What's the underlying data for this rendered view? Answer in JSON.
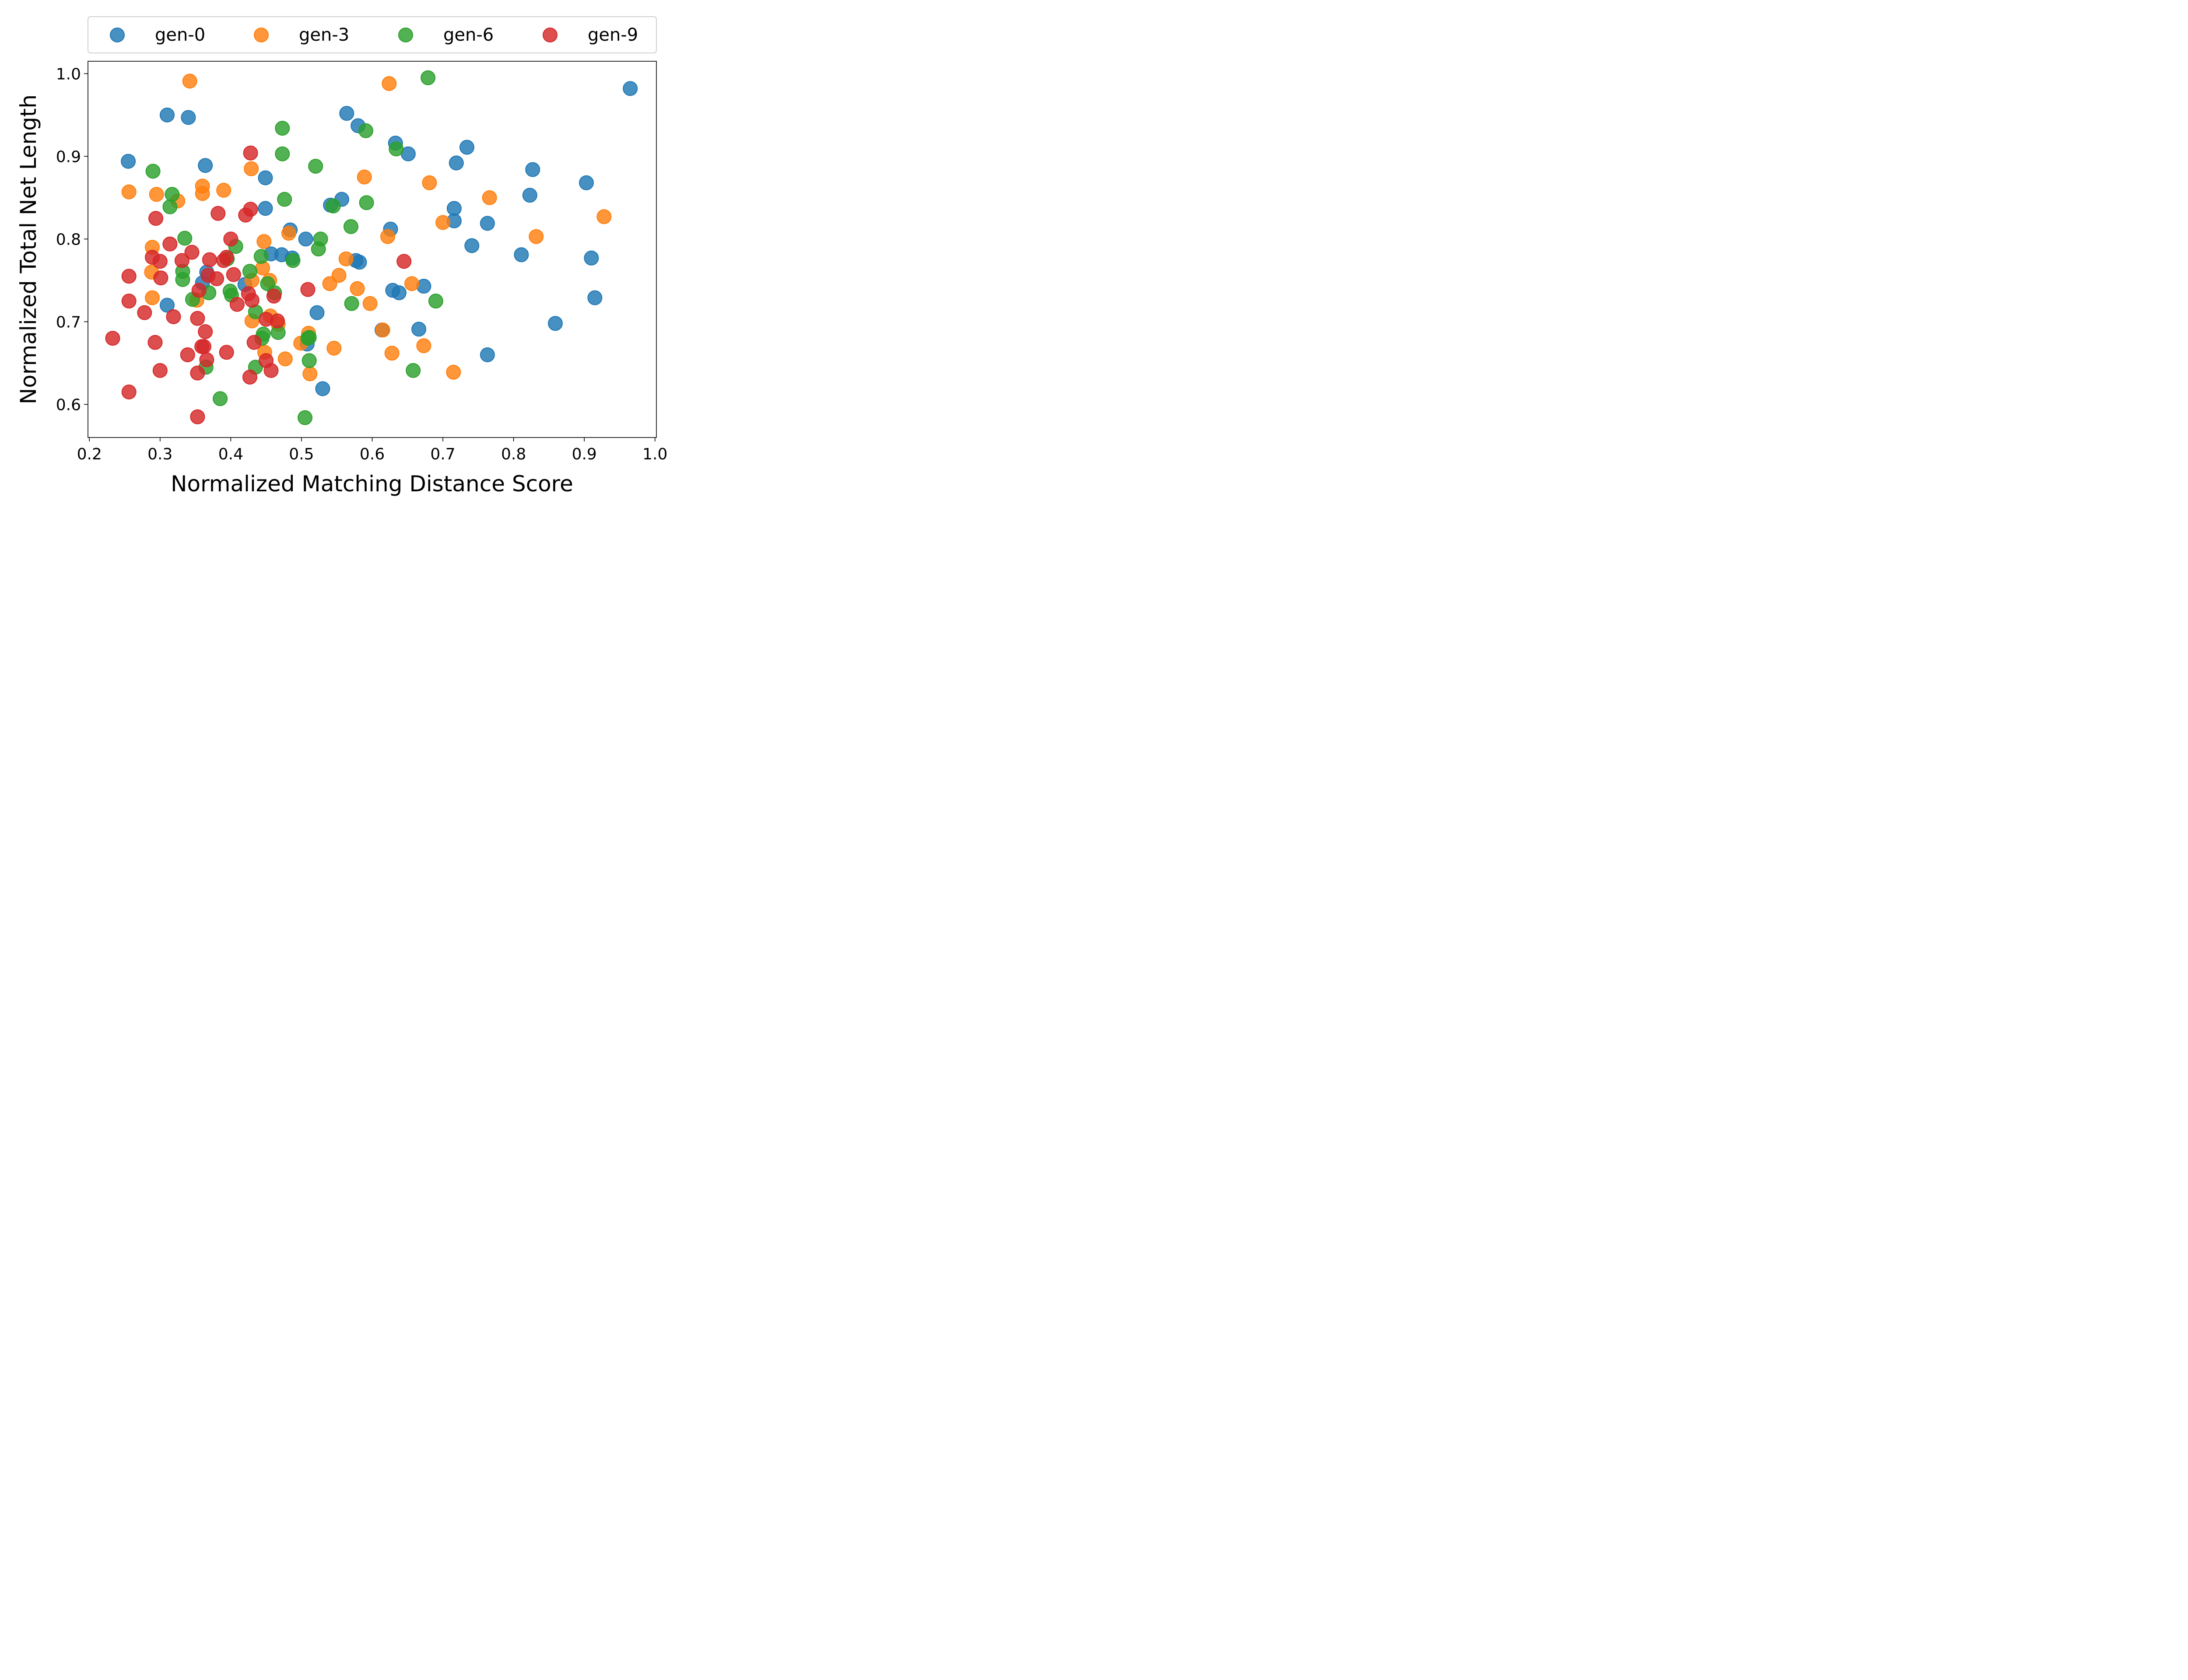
{
  "chart_data": {
    "type": "scatter",
    "xlabel": "Normalized Matching Distance Score",
    "ylabel": "Normalized Total Net Length",
    "xlim": [
      0.198,
      1.002
    ],
    "ylim": [
      0.56,
      1.015
    ],
    "xticks": [
      0.2,
      0.3,
      0.4,
      0.5,
      0.6,
      0.7,
      0.8,
      0.9,
      1.0
    ],
    "yticks": [
      0.6,
      0.7,
      0.8,
      0.9,
      1.0
    ],
    "grid": false,
    "legend_position": "above-plot",
    "series": [
      {
        "name": "gen-0",
        "color": "#1f77b4",
        "points": [
          [
            0.31,
            0.95
          ],
          [
            0.34,
            0.947
          ],
          [
            0.255,
            0.894
          ],
          [
            0.364,
            0.889
          ],
          [
            0.449,
            0.874
          ],
          [
            0.449,
            0.837
          ],
          [
            0.31,
            0.72
          ],
          [
            0.36,
            0.747
          ],
          [
            0.366,
            0.76
          ],
          [
            0.484,
            0.811
          ],
          [
            0.506,
            0.8
          ],
          [
            0.457,
            0.782
          ],
          [
            0.472,
            0.781
          ],
          [
            0.487,
            0.777
          ],
          [
            0.42,
            0.745
          ],
          [
            0.508,
            0.673
          ],
          [
            0.522,
            0.711
          ],
          [
            0.53,
            0.619
          ],
          [
            0.541,
            0.841
          ],
          [
            0.557,
            0.848
          ],
          [
            0.564,
            0.952
          ],
          [
            0.58,
            0.937
          ],
          [
            0.577,
            0.774
          ],
          [
            0.582,
            0.772
          ],
          [
            0.633,
            0.916
          ],
          [
            0.651,
            0.903
          ],
          [
            0.626,
            0.812
          ],
          [
            0.629,
            0.738
          ],
          [
            0.638,
            0.735
          ],
          [
            0.614,
            0.69
          ],
          [
            0.666,
            0.691
          ],
          [
            0.673,
            0.743
          ],
          [
            0.734,
            0.911
          ],
          [
            0.719,
            0.892
          ],
          [
            0.716,
            0.837
          ],
          [
            0.716,
            0.822
          ],
          [
            0.741,
            0.792
          ],
          [
            0.763,
            0.819
          ],
          [
            0.763,
            0.66
          ],
          [
            0.827,
            0.884
          ],
          [
            0.823,
            0.853
          ],
          [
            0.811,
            0.781
          ],
          [
            0.859,
            0.698
          ],
          [
            0.903,
            0.868
          ],
          [
            0.91,
            0.777
          ],
          [
            0.915,
            0.729
          ],
          [
            0.965,
            0.982
          ]
        ]
      },
      {
        "name": "gen-3",
        "color": "#ff7f0e",
        "points": [
          [
            0.342,
            0.991
          ],
          [
            0.256,
            0.857
          ],
          [
            0.36,
            0.864
          ],
          [
            0.36,
            0.855
          ],
          [
            0.295,
            0.854
          ],
          [
            0.325,
            0.846
          ],
          [
            0.39,
            0.859
          ],
          [
            0.429,
            0.885
          ],
          [
            0.289,
            0.79
          ],
          [
            0.288,
            0.76
          ],
          [
            0.289,
            0.729
          ],
          [
            0.352,
            0.726
          ],
          [
            0.447,
            0.797
          ],
          [
            0.445,
            0.765
          ],
          [
            0.43,
            0.75
          ],
          [
            0.455,
            0.75
          ],
          [
            0.43,
            0.701
          ],
          [
            0.456,
            0.707
          ],
          [
            0.467,
            0.697
          ],
          [
            0.448,
            0.663
          ],
          [
            0.477,
            0.655
          ],
          [
            0.482,
            0.807
          ],
          [
            0.499,
            0.674
          ],
          [
            0.51,
            0.686
          ],
          [
            0.512,
            0.637
          ],
          [
            0.546,
            0.668
          ],
          [
            0.54,
            0.746
          ],
          [
            0.553,
            0.756
          ],
          [
            0.563,
            0.776
          ],
          [
            0.579,
            0.74
          ],
          [
            0.589,
            0.875
          ],
          [
            0.597,
            0.722
          ],
          [
            0.624,
            0.988
          ],
          [
            0.622,
            0.803
          ],
          [
            0.615,
            0.69
          ],
          [
            0.628,
            0.662
          ],
          [
            0.656,
            0.746
          ],
          [
            0.681,
            0.868
          ],
          [
            0.673,
            0.671
          ],
          [
            0.7,
            0.82
          ],
          [
            0.715,
            0.639
          ],
          [
            0.766,
            0.85
          ],
          [
            0.832,
            0.803
          ],
          [
            0.928,
            0.827
          ]
        ]
      },
      {
        "name": "gen-6",
        "color": "#2ca02c",
        "points": [
          [
            0.679,
            0.995
          ],
          [
            0.473,
            0.934
          ],
          [
            0.591,
            0.931
          ],
          [
            0.634,
            0.909
          ],
          [
            0.473,
            0.903
          ],
          [
            0.52,
            0.888
          ],
          [
            0.29,
            0.882
          ],
          [
            0.317,
            0.854
          ],
          [
            0.314,
            0.839
          ],
          [
            0.476,
            0.848
          ],
          [
            0.545,
            0.84
          ],
          [
            0.592,
            0.844
          ],
          [
            0.57,
            0.815
          ],
          [
            0.335,
            0.801
          ],
          [
            0.407,
            0.791
          ],
          [
            0.527,
            0.8
          ],
          [
            0.524,
            0.788
          ],
          [
            0.443,
            0.779
          ],
          [
            0.488,
            0.774
          ],
          [
            0.395,
            0.776
          ],
          [
            0.332,
            0.761
          ],
          [
            0.332,
            0.751
          ],
          [
            0.427,
            0.761
          ],
          [
            0.452,
            0.746
          ],
          [
            0.462,
            0.735
          ],
          [
            0.399,
            0.737
          ],
          [
            0.401,
            0.732
          ],
          [
            0.346,
            0.727
          ],
          [
            0.369,
            0.735
          ],
          [
            0.435,
            0.712
          ],
          [
            0.446,
            0.685
          ],
          [
            0.444,
            0.68
          ],
          [
            0.467,
            0.687
          ],
          [
            0.509,
            0.68
          ],
          [
            0.511,
            0.681
          ],
          [
            0.571,
            0.722
          ],
          [
            0.69,
            0.725
          ],
          [
            0.365,
            0.645
          ],
          [
            0.435,
            0.645
          ],
          [
            0.511,
            0.653
          ],
          [
            0.658,
            0.641
          ],
          [
            0.385,
            0.607
          ],
          [
            0.505,
            0.584
          ]
        ]
      },
      {
        "name": "gen-9",
        "color": "#d62728",
        "points": [
          [
            0.428,
            0.904
          ],
          [
            0.294,
            0.825
          ],
          [
            0.382,
            0.831
          ],
          [
            0.421,
            0.829
          ],
          [
            0.428,
            0.836
          ],
          [
            0.314,
            0.794
          ],
          [
            0.4,
            0.8
          ],
          [
            0.345,
            0.784
          ],
          [
            0.289,
            0.778
          ],
          [
            0.3,
            0.773
          ],
          [
            0.331,
            0.774
          ],
          [
            0.37,
            0.775
          ],
          [
            0.39,
            0.774
          ],
          [
            0.394,
            0.778
          ],
          [
            0.256,
            0.755
          ],
          [
            0.301,
            0.753
          ],
          [
            0.368,
            0.756
          ],
          [
            0.38,
            0.752
          ],
          [
            0.404,
            0.757
          ],
          [
            0.355,
            0.738
          ],
          [
            0.425,
            0.734
          ],
          [
            0.461,
            0.731
          ],
          [
            0.509,
            0.739
          ],
          [
            0.645,
            0.773
          ],
          [
            0.256,
            0.725
          ],
          [
            0.278,
            0.711
          ],
          [
            0.319,
            0.706
          ],
          [
            0.409,
            0.721
          ],
          [
            0.43,
            0.726
          ],
          [
            0.353,
            0.704
          ],
          [
            0.45,
            0.703
          ],
          [
            0.466,
            0.701
          ],
          [
            0.233,
            0.68
          ],
          [
            0.293,
            0.675
          ],
          [
            0.364,
            0.688
          ],
          [
            0.359,
            0.67
          ],
          [
            0.362,
            0.67
          ],
          [
            0.394,
            0.663
          ],
          [
            0.433,
            0.675
          ],
          [
            0.3,
            0.641
          ],
          [
            0.339,
            0.66
          ],
          [
            0.366,
            0.654
          ],
          [
            0.45,
            0.653
          ],
          [
            0.427,
            0.633
          ],
          [
            0.457,
            0.641
          ],
          [
            0.353,
            0.638
          ],
          [
            0.256,
            0.615
          ],
          [
            0.353,
            0.585
          ]
        ]
      }
    ]
  }
}
